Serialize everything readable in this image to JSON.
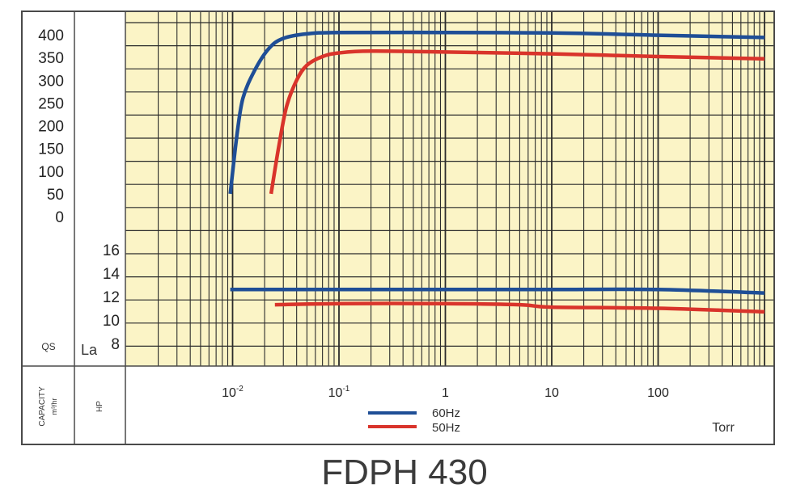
{
  "chart_data": {
    "type": "line",
    "title": "FDPH 430",
    "x_unit_label": "Torr",
    "x_scale": "log",
    "x_range": [
      0.001,
      1000
    ],
    "x_tick_labels": [
      {
        "value": 0.01,
        "base": "10",
        "exp": "-2"
      },
      {
        "value": 0.1,
        "base": "10",
        "exp": "-1"
      },
      {
        "value": 1,
        "text": "1"
      },
      {
        "value": 10,
        "text": "10"
      },
      {
        "value": 100,
        "text": "100"
      }
    ],
    "upper_panel": {
      "y_range": [
        0,
        400
      ],
      "y_ticks": [
        "400",
        "350",
        "300",
        "250",
        "200",
        "150",
        "100",
        "50",
        "0"
      ],
      "y_label": "QS",
      "series": [
        {
          "name": "60Hz",
          "color": "#1f4e96",
          "points": [
            [
              0.0095,
              50
            ],
            [
              0.011,
              180
            ],
            [
              0.0125,
              260
            ],
            [
              0.016,
              320
            ],
            [
              0.022,
              370
            ],
            [
              0.03,
              392
            ],
            [
              0.05,
              402
            ],
            [
              0.1,
              405
            ],
            [
              1,
              405
            ],
            [
              10,
              404
            ],
            [
              100,
              399
            ],
            [
              1000,
              394
            ]
          ]
        },
        {
          "name": "50Hz",
          "color": "#d9342b",
          "points": [
            [
              0.023,
              50
            ],
            [
              0.027,
              150
            ],
            [
              0.032,
              240
            ],
            [
              0.04,
              300
            ],
            [
              0.05,
              333
            ],
            [
              0.07,
              352
            ],
            [
              0.1,
              360
            ],
            [
              0.2,
              364
            ],
            [
              1,
              362
            ],
            [
              10,
              358
            ],
            [
              100,
              352
            ],
            [
              1000,
              347
            ]
          ]
        }
      ]
    },
    "lower_panel": {
      "y_range": [
        8,
        16
      ],
      "y_ticks": [
        "16",
        "14",
        "12",
        "10",
        "8"
      ],
      "y_label": "La",
      "series": [
        {
          "name": "60Hz",
          "color": "#1f4e96",
          "points": [
            [
              0.0095,
              12.6
            ],
            [
              0.1,
              12.6
            ],
            [
              1,
              12.6
            ],
            [
              10,
              12.6
            ],
            [
              100,
              12.6
            ],
            [
              1000,
              12.3
            ]
          ]
        },
        {
          "name": "50Hz",
          "color": "#d9342b",
          "points": [
            [
              0.025,
              11.3
            ],
            [
              0.1,
              11.4
            ],
            [
              1,
              11.4
            ],
            [
              5,
              11.3
            ],
            [
              10,
              11.1
            ],
            [
              100,
              11.0
            ],
            [
              1000,
              10.7
            ]
          ]
        }
      ]
    },
    "bottom_row_labels": {
      "capacity": "CAPACITY",
      "capacity_unit": "m³/hr",
      "hp": "HP"
    },
    "legend": [
      {
        "name": "60Hz",
        "color": "#1f4e96"
      },
      {
        "name": "50Hz",
        "color": "#d9342b"
      }
    ],
    "grid": true,
    "plot_background": "#fbf4c6",
    "frame_color": "#4a4a4a"
  }
}
